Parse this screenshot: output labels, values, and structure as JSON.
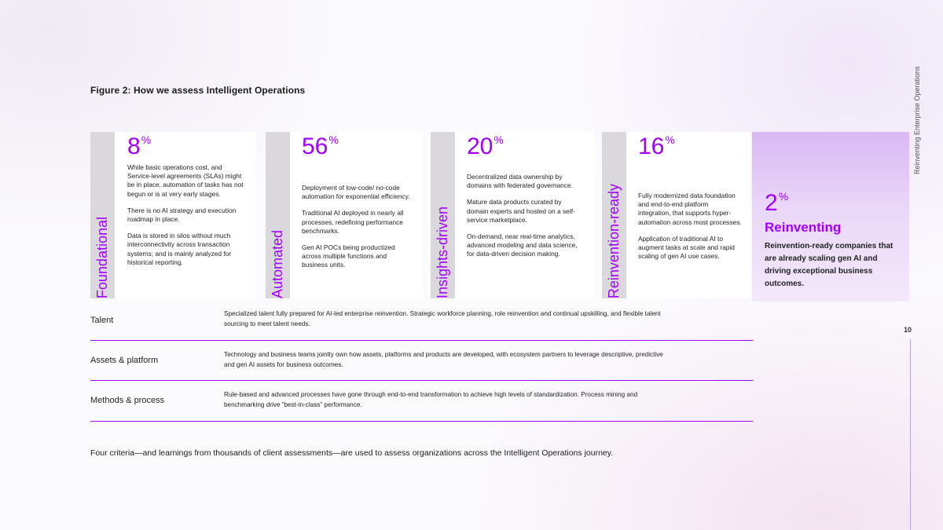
{
  "figure_title": "Figure 2: How we assess Intelligent Operations",
  "side_label": "Reinventing Enterprise Operations",
  "page_number": "10",
  "stages": [
    {
      "name": "Foundational",
      "percent": "8",
      "percent_sign": "%",
      "paragraphs": [
        "While basic operations cost, and Service-level agreements (SLAs) might be in place, automation of tasks has not begun or is at very early stages.",
        "There is no AI strategy and execution roadmap in place.",
        "Data is stored in silos without much interconnectivity across transaction systems; and is mainly analyzed for historical reporting."
      ]
    },
    {
      "name": "Automated",
      "percent": "56",
      "percent_sign": "%",
      "paragraphs": [
        "Deployment of low-code/ no-code automation for exponential efficiency.",
        "Traditional AI deployed in nearly all processes, redefining performance benchmarks.",
        "Gen AI POCs being productized across multiple functions and business units."
      ]
    },
    {
      "name": "Insights-driven",
      "percent": "20",
      "percent_sign": "%",
      "paragraphs": [
        "Decentralized data ownership by domains with federated governance.",
        "Mature data products curated by domain experts and hosted on a self-service marketplace.",
        "On-demand, near real-time analytics, advanced modeling and data science, for data-driven decision making."
      ]
    },
    {
      "name": "Reinvention-ready",
      "percent": "16",
      "percent_sign": "%",
      "paragraphs": [
        "Fully modernized data foundation and end-to-end platform integration, that supports hyper-automation across most processes.",
        "Application of traditional AI to augment tasks at scale and rapid scaling of gen AI use cases."
      ]
    }
  ],
  "reinventing": {
    "percent": "2",
    "percent_sign": "%",
    "name": "Reinventing",
    "description": "Reinvention-ready companies that are already scaling gen AI and driving exceptional business outcomes."
  },
  "criteria": [
    {
      "label": "Talent",
      "text": "Specialized talent fully prepared for AI-led enterprise reinvention. Strategic workforce planning, role reinvention and continual upskilling, and flexible talent sourcing to meet talent needs."
    },
    {
      "label": "Assets & platform",
      "text": "Technology and business teams jointly own how assets, platforms and products are developed, with ecosystem partners to leverage descriptive, predictive and gen AI assets for business outcomes."
    },
    {
      "label": "Methods & process",
      "text": "Rule-based and advanced processes have gone through end-to-end transformation to achieve high levels of standardization. Process mining and benchmarking drive “best-in-class” performance."
    }
  ],
  "footer_note": "Four criteria—and learnings from thousands of client assessments—are used to assess organizations across the Intelligent Operations journey.",
  "colors": {
    "accent": "#a100ff",
    "stage_bar": "#dad8dc",
    "reinventing_bg": "#e4c9f6"
  }
}
